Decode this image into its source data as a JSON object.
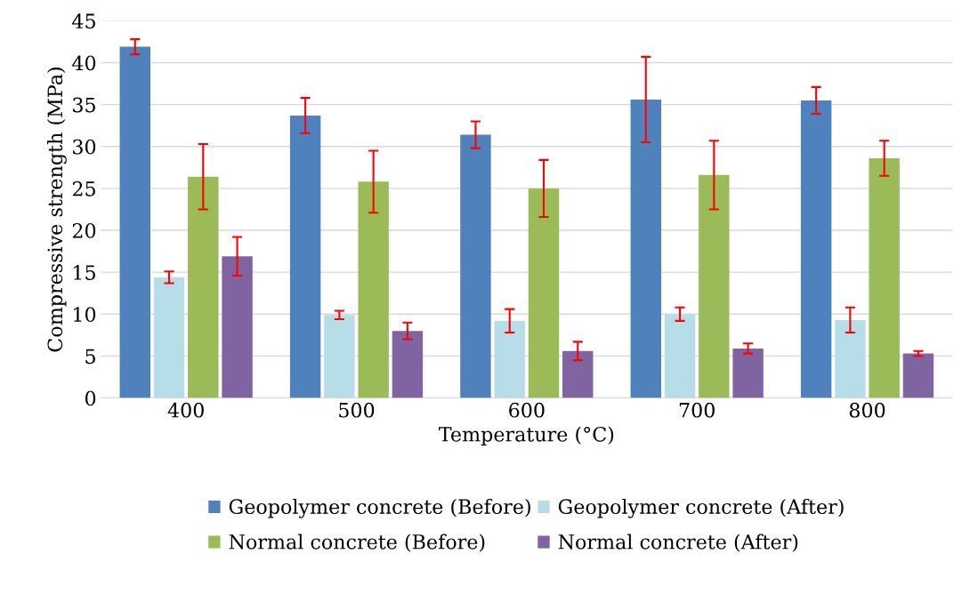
{
  "chart_data": {
    "type": "bar",
    "xlabel": "Temperature (°C)",
    "ylabel": "Compressive strength (MPa)",
    "categories": [
      "400",
      "500",
      "600",
      "700",
      "800"
    ],
    "series": [
      {
        "name": "Geopolymer concrete (Before)",
        "color": "#4f81bd",
        "values": [
          41.9,
          33.7,
          31.4,
          35.6,
          35.5
        ],
        "errors": [
          0.9,
          2.1,
          1.6,
          5.1,
          1.6
        ]
      },
      {
        "name": "Geopolymer concrete (After)",
        "color": "#b7dee8",
        "values": [
          14.4,
          9.9,
          9.2,
          10.0,
          9.3
        ],
        "errors": [
          0.7,
          0.5,
          1.4,
          0.8,
          1.5
        ]
      },
      {
        "name": "Normal concrete (Before)",
        "color": "#9bbb59",
        "values": [
          26.4,
          25.8,
          25.0,
          26.6,
          28.6
        ],
        "errors": [
          3.9,
          3.7,
          3.4,
          4.1,
          2.1
        ]
      },
      {
        "name": "Normal concrete (After)",
        "color": "#8064a2",
        "values": [
          16.9,
          8.0,
          5.6,
          5.9,
          5.3
        ],
        "errors": [
          2.3,
          1.0,
          1.1,
          0.6,
          0.3
        ]
      }
    ],
    "ylim": [
      0,
      45
    ],
    "yticks": [
      0,
      5,
      10,
      15,
      20,
      25,
      30,
      35,
      40,
      45
    ],
    "grid": "y",
    "legend": "bottom"
  }
}
